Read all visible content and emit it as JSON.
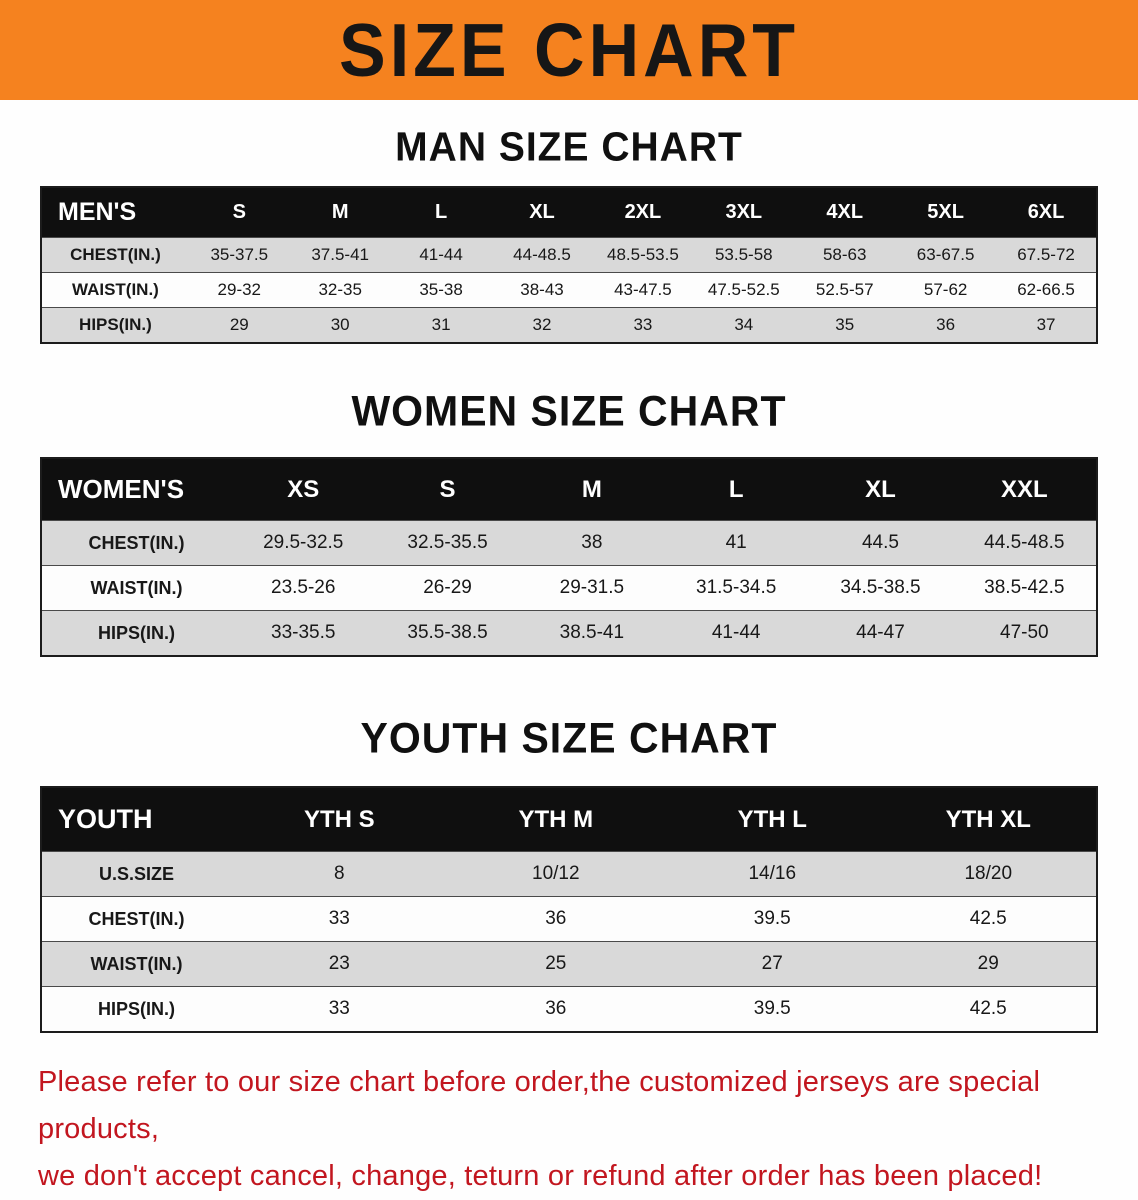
{
  "banner": {
    "title": "SIZE CHART"
  },
  "men": {
    "heading": "MAN SIZE CHART",
    "table": {
      "header": [
        "MEN'S",
        "S",
        "M",
        "L",
        "XL",
        "2XL",
        "3XL",
        "4XL",
        "5XL",
        "6XL"
      ],
      "rows": [
        {
          "label": "CHEST(IN.)",
          "values": [
            "35-37.5",
            "37.5-41",
            "41-44",
            "44-48.5",
            "48.5-53.5",
            "53.5-58",
            "58-63",
            "63-67.5",
            "67.5-72"
          ]
        },
        {
          "label": "WAIST(IN.)",
          "values": [
            "29-32",
            "32-35",
            "35-38",
            "38-43",
            "43-47.5",
            "47.5-52.5",
            "52.5-57",
            "57-62",
            "62-66.5"
          ]
        },
        {
          "label": "HIPS(IN.)",
          "values": [
            "29",
            "30",
            "31",
            "32",
            "33",
            "34",
            "35",
            "36",
            "37"
          ]
        }
      ]
    }
  },
  "women": {
    "heading": "WOMEN SIZE CHART",
    "table": {
      "header": [
        "WOMEN'S",
        "XS",
        "S",
        "M",
        "L",
        "XL",
        "XXL"
      ],
      "rows": [
        {
          "label": "CHEST(IN.)",
          "values": [
            "29.5-32.5",
            "32.5-35.5",
            "38",
            "41",
            "44.5",
            "44.5-48.5"
          ]
        },
        {
          "label": "WAIST(IN.)",
          "values": [
            "23.5-26",
            "26-29",
            "29-31.5",
            "31.5-34.5",
            "34.5-38.5",
            "38.5-42.5"
          ]
        },
        {
          "label": "HIPS(IN.)",
          "values": [
            "33-35.5",
            "35.5-38.5",
            "38.5-41",
            "41-44",
            "44-47",
            "47-50"
          ]
        }
      ]
    }
  },
  "youth": {
    "heading": "YOUTH SIZE CHART",
    "table": {
      "header": [
        "YOUTH",
        "YTH S",
        "YTH M",
        "YTH L",
        "YTH XL"
      ],
      "rows": [
        {
          "label": "U.S.SIZE",
          "values": [
            "8",
            "10/12",
            "14/16",
            "18/20"
          ]
        },
        {
          "label": "CHEST(IN.)",
          "values": [
            "33",
            "36",
            "39.5",
            "42.5"
          ]
        },
        {
          "label": "WAIST(IN.)",
          "values": [
            "23",
            "25",
            "27",
            "29"
          ]
        },
        {
          "label": "HIPS(IN.)",
          "values": [
            "33",
            "36",
            "39.5",
            "42.5"
          ]
        }
      ]
    }
  },
  "disclaimer": {
    "line1": "Please refer to our size chart before order,the customized jerseys are special products,",
    "line2": "we don't accept cancel, change, teturn or refund after order has been placed!"
  },
  "colors": {
    "banner_bg": "#f5821f",
    "header_bg": "#0f0f0f",
    "row_shade": "#d9d9d9",
    "disclaimer_red": "#c2161f"
  }
}
